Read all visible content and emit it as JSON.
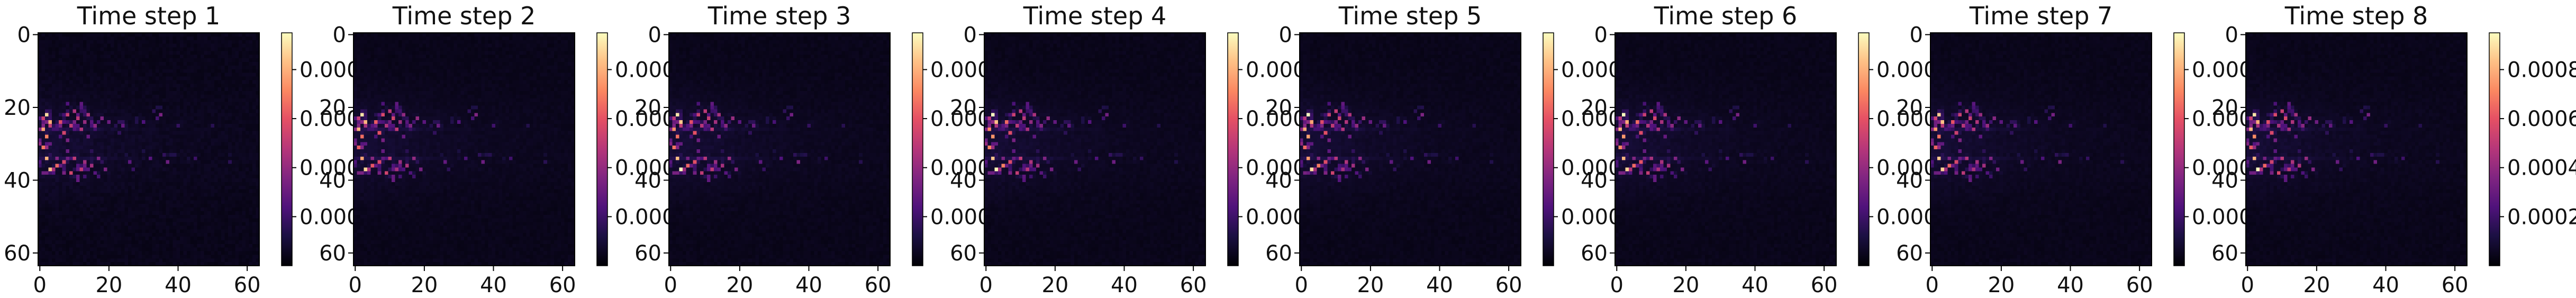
{
  "chart_data": {
    "type": "heatmap",
    "grid_size": 64,
    "colormap": "magma",
    "axis_ticks": [
      "0",
      "20",
      "40",
      "60"
    ],
    "panels": [
      {
        "title": "Time step 1",
        "colorbar_ticks": [
          "0.000",
          "0.000",
          "0.000",
          "0.000"
        ]
      },
      {
        "title": "Time step 2",
        "colorbar_ticks": [
          "0.000",
          "0.000",
          "0.000",
          "0.000"
        ]
      },
      {
        "title": "Time step 3",
        "colorbar_ticks": [
          "0.000",
          "0.000",
          "0.000",
          "0.000"
        ]
      },
      {
        "title": "Time step 4",
        "colorbar_ticks": [
          "0.000",
          "0.000",
          "0.000",
          "0.000"
        ]
      },
      {
        "title": "Time step 5",
        "colorbar_ticks": [
          "0.000",
          "0.000",
          "0.000",
          "0.000"
        ]
      },
      {
        "title": "Time step 6",
        "colorbar_ticks": [
          "0.000",
          "0.000",
          "0.000",
          "0.000"
        ]
      },
      {
        "title": "Time step 7",
        "colorbar_ticks": [
          "0.000",
          "0.000",
          "0.000",
          "0.000"
        ]
      },
      {
        "title": "Time step 8",
        "colorbar_ticks": [
          "0.0008",
          "0.0006",
          "0.0004",
          "0.0002"
        ]
      }
    ],
    "colorbar_value_range": [
      0,
      0.00095
    ],
    "colorbar_tick_values_last": [
      0.0008,
      0.0006,
      0.0004,
      0.0002
    ],
    "hotspots": [
      {
        "x": 2,
        "y": 22,
        "intensity": 0.95
      },
      {
        "x": 3,
        "y": 24,
        "intensity": 0.85
      },
      {
        "x": 1,
        "y": 26,
        "intensity": 0.8
      },
      {
        "x": 2,
        "y": 28,
        "intensity": 0.75
      },
      {
        "x": 1,
        "y": 31,
        "intensity": 0.7
      },
      {
        "x": 2,
        "y": 34,
        "intensity": 0.85
      },
      {
        "x": 3,
        "y": 37,
        "intensity": 0.95
      },
      {
        "x": 5,
        "y": 36,
        "intensity": 0.7
      },
      {
        "x": 6,
        "y": 24,
        "intensity": 0.65
      },
      {
        "x": 7,
        "y": 27,
        "intensity": 0.6
      },
      {
        "x": 8,
        "y": 22,
        "intensity": 0.55
      },
      {
        "x": 9,
        "y": 25,
        "intensity": 0.5
      },
      {
        "x": 10,
        "y": 21,
        "intensity": 0.5
      },
      {
        "x": 11,
        "y": 23,
        "intensity": 0.55
      },
      {
        "x": 12,
        "y": 26,
        "intensity": 0.5
      },
      {
        "x": 13,
        "y": 24,
        "intensity": 0.45
      },
      {
        "x": 14,
        "y": 22,
        "intensity": 0.45
      },
      {
        "x": 16,
        "y": 25,
        "intensity": 0.4
      },
      {
        "x": 18,
        "y": 23,
        "intensity": 0.4
      },
      {
        "x": 7,
        "y": 35,
        "intensity": 0.6
      },
      {
        "x": 9,
        "y": 38,
        "intensity": 0.55
      },
      {
        "x": 10,
        "y": 34,
        "intensity": 0.5
      },
      {
        "x": 12,
        "y": 37,
        "intensity": 0.5
      },
      {
        "x": 13,
        "y": 35,
        "intensity": 0.45
      },
      {
        "x": 15,
        "y": 36,
        "intensity": 0.45
      },
      {
        "x": 17,
        "y": 34,
        "intensity": 0.4
      },
      {
        "x": 19,
        "y": 37,
        "intensity": 0.35
      },
      {
        "x": 20,
        "y": 24,
        "intensity": 0.3
      },
      {
        "x": 24,
        "y": 25,
        "intensity": 0.3
      },
      {
        "x": 26,
        "y": 35,
        "intensity": 0.3
      },
      {
        "x": 30,
        "y": 24,
        "intensity": 0.25
      },
      {
        "x": 32,
        "y": 34,
        "intensity": 0.25
      },
      {
        "x": 35,
        "y": 22,
        "intensity": 0.35
      },
      {
        "x": 37,
        "y": 35,
        "intensity": 0.35
      },
      {
        "x": 40,
        "y": 25,
        "intensity": 0.2
      },
      {
        "x": 45,
        "y": 34,
        "intensity": 0.2
      },
      {
        "x": 50,
        "y": 25,
        "intensity": 0.15
      },
      {
        "x": 55,
        "y": 35,
        "intensity": 0.15
      }
    ],
    "grid": false,
    "colorbar_position": "right of each panel"
  }
}
